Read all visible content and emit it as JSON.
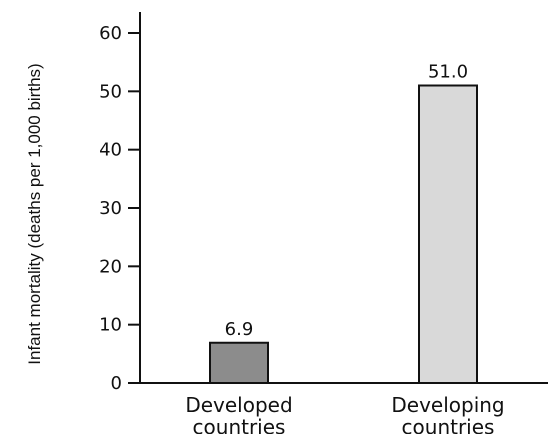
{
  "chart_data": {
    "type": "bar",
    "title": "",
    "xlabel": "",
    "ylabel": "Infant mortality (deaths per 1,000 births)",
    "categories": [
      [
        "Developed",
        "countries"
      ],
      [
        "Developing",
        "countries"
      ]
    ],
    "values": [
      6.9,
      51.0
    ],
    "value_labels": [
      "6.9",
      "51.0"
    ],
    "bar_colors": [
      "#8c8c8c",
      "#d9d9d9"
    ],
    "yticks": [
      0,
      10,
      20,
      30,
      40,
      50,
      60
    ],
    "ylim": [
      0,
      60
    ],
    "grid": false,
    "legend": "none"
  }
}
